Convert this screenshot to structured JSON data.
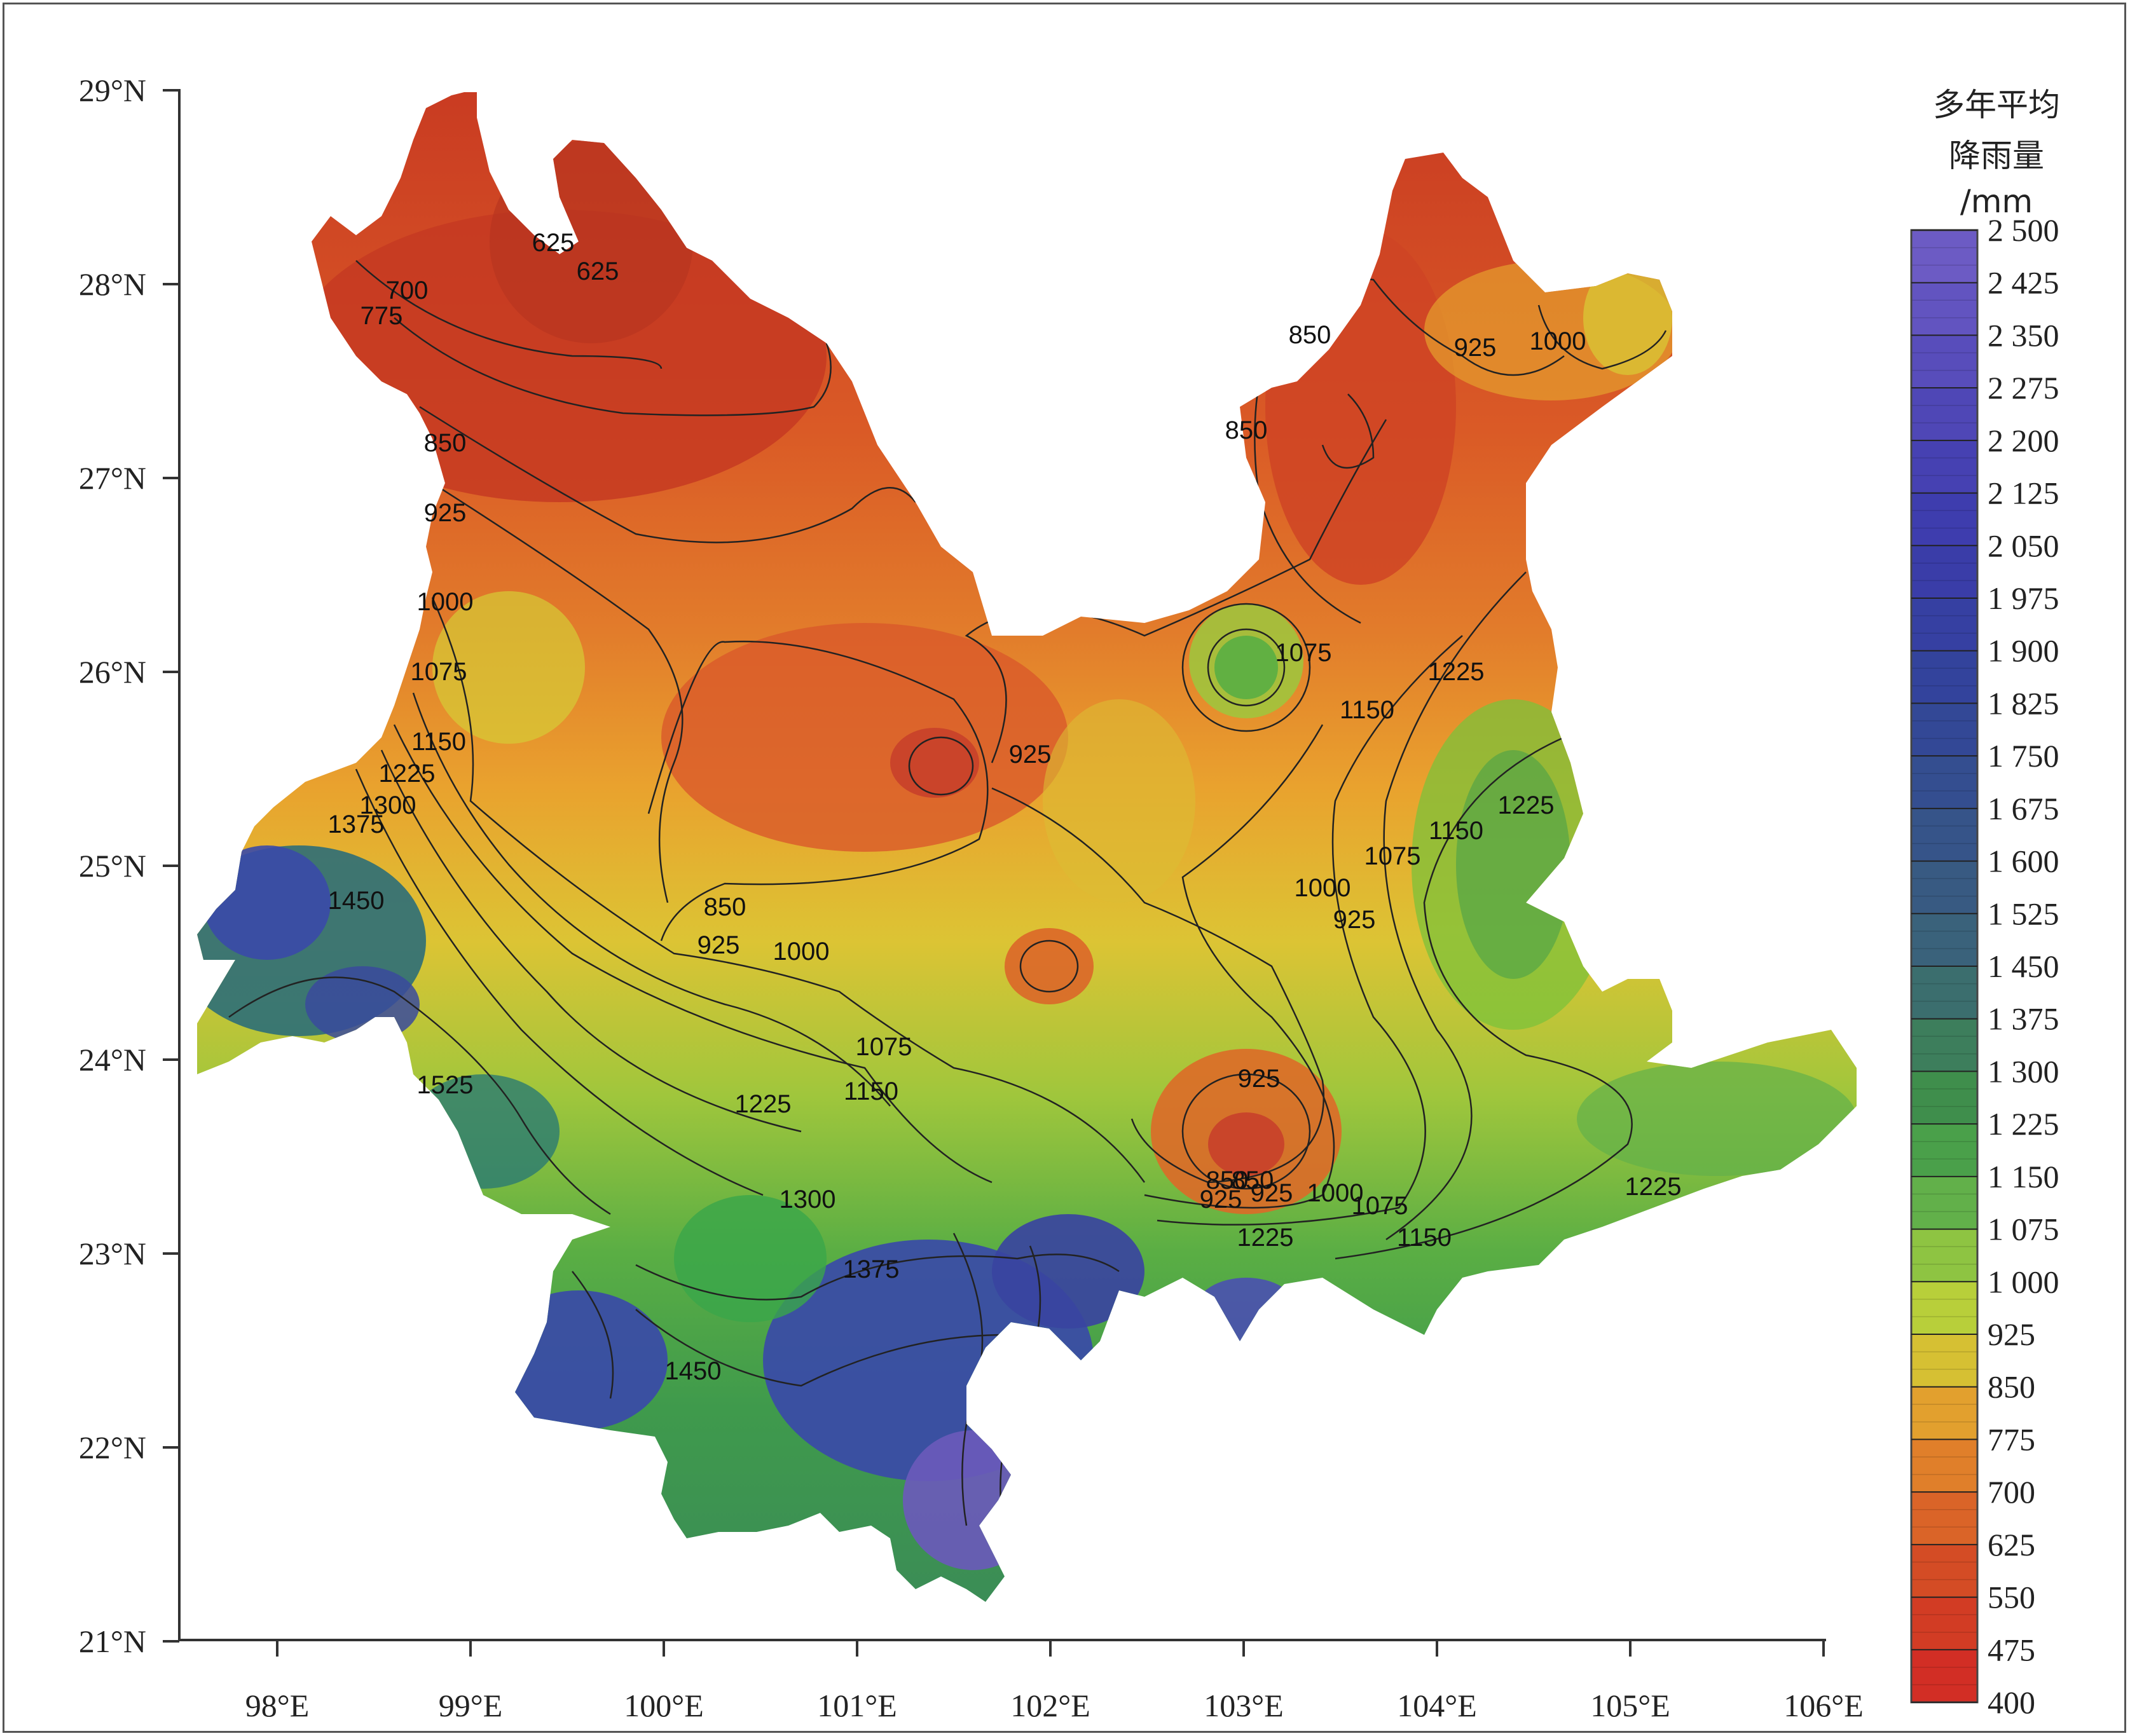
{
  "map": {
    "x_axis": {
      "ticks": [
        "98°E",
        "99°E",
        "100°E",
        "101°E",
        "102°E",
        "103°E",
        "104°E",
        "105°E",
        "106°E"
      ]
    },
    "y_axis": {
      "ticks": [
        "29°N",
        "28°N",
        "27°N",
        "26°N",
        "25°N",
        "24°N",
        "23°N",
        "22°N",
        "21°N"
      ]
    },
    "contour_labels": [
      "625",
      "625",
      "700",
      "775",
      "850",
      "925",
      "1000",
      "1075",
      "1150",
      "1225",
      "1300",
      "1375",
      "1450",
      "850",
      "925",
      "1000",
      "1075",
      "1150",
      "1225",
      "1300",
      "1375",
      "1450",
      "1525",
      "925",
      "850",
      "925",
      "1000",
      "1075",
      "1150",
      "1225",
      "850",
      "925",
      "850",
      "850",
      "925",
      "925",
      "1000",
      "1075",
      "1150",
      "1225",
      "1225",
      "1150",
      "1075",
      "1000",
      "925",
      "1225"
    ],
    "colors": {
      "dry": "#cc3a22",
      "mid_dry": "#e07a2a",
      "mid": "#e8b42c",
      "moist": "#d9d23a",
      "wet": "#7cc23a",
      "wetter": "#3aa64a",
      "very_wet": "#2a7a72",
      "wettest": "#3a4aa8",
      "extreme": "#6a5aba"
    }
  },
  "legend": {
    "title_lines": [
      "多年平均",
      "降雨量",
      "/mm"
    ],
    "labels": [
      "2 500",
      "2 425",
      "2 350",
      "2 275",
      "2 200",
      "2 125",
      "2 050",
      "1 975",
      "1 900",
      "1 825",
      "1 750",
      "1 675",
      "1 600",
      "1 525",
      "1 450",
      "1 375",
      "1 300",
      "1 225",
      "1 150",
      "1 075",
      "1 000",
      "925",
      "850",
      "775",
      "700",
      "625",
      "550",
      "475",
      "400"
    ],
    "colors": [
      "#6c5bc4",
      "#6254c0",
      "#584dbb",
      "#4f47b6",
      "#4641b2",
      "#3e3dae",
      "#3a3da8",
      "#3640a2",
      "#33439c",
      "#334896",
      "#344e90",
      "#365489",
      "#385a82",
      "#3a627b",
      "#3b6e6e",
      "#3d7e5c",
      "#3f8e4c",
      "#4aa04a",
      "#62b04a",
      "#8ec442",
      "#b8cf3a",
      "#d6c033",
      "#e2a02e",
      "#e07f2a",
      "#da6428",
      "#d44c25",
      "#d23c24",
      "#d22e25",
      "#d0222a"
    ]
  }
}
